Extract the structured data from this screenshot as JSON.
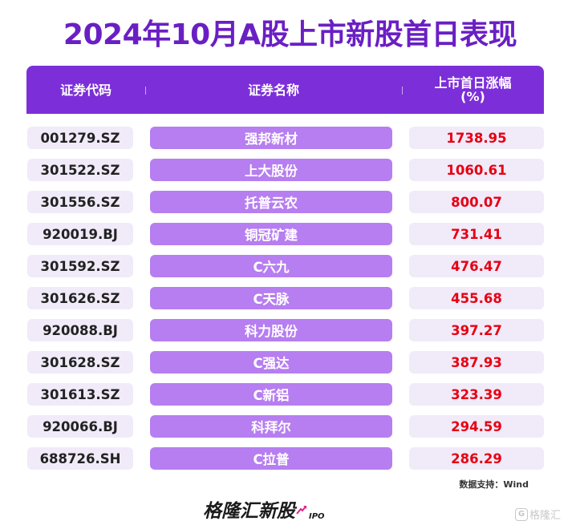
{
  "title": "2024年10月A股上市新股首日表现",
  "header": {
    "code_label": "证券代码",
    "name_label": "证券名称",
    "pct_label_line1": "上市首日涨幅",
    "pct_label_line2": "(%)"
  },
  "chart_data": {
    "type": "table",
    "columns": [
      "证券代码",
      "证券名称",
      "上市首日涨幅(%)"
    ],
    "rows": [
      {
        "code": "001279.SZ",
        "name": "强邦新材",
        "pct": "1738.95"
      },
      {
        "code": "301522.SZ",
        "name": "上大股份",
        "pct": "1060.61"
      },
      {
        "code": "301556.SZ",
        "name": "托普云农",
        "pct": "800.07"
      },
      {
        "code": "920019.BJ",
        "name": "铜冠矿建",
        "pct": "731.41"
      },
      {
        "code": "301592.SZ",
        "name": "C六九",
        "pct": "476.47"
      },
      {
        "code": "301626.SZ",
        "name": "C天脉",
        "pct": "455.68"
      },
      {
        "code": "920088.BJ",
        "name": "科力股份",
        "pct": "397.27"
      },
      {
        "code": "301628.SZ",
        "name": "C强达",
        "pct": "387.93"
      },
      {
        "code": "301613.SZ",
        "name": "C新铝",
        "pct": "323.39"
      },
      {
        "code": "920066.BJ",
        "name": "科拜尔",
        "pct": "294.59"
      },
      {
        "code": "688726.SH",
        "name": "C拉普",
        "pct": "286.29"
      }
    ]
  },
  "source": "数据支持：Wind",
  "logo": {
    "text": "格隆汇新股",
    "suffix": "IPO"
  },
  "watermark": {
    "icon": "G",
    "text": "格隆汇"
  },
  "colors": {
    "title": "#6a1fc4",
    "header_bg": "#7c2fd8",
    "name_cell_bg": "#b67ef0",
    "light_cell_bg": "#f1eaf9",
    "pct_text": "#e60012"
  }
}
